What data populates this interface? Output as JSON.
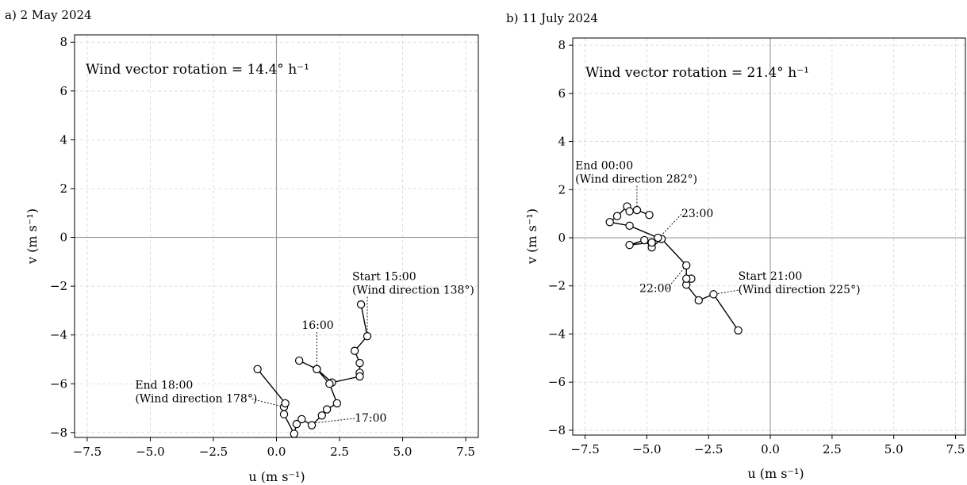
{
  "chart_data": [
    {
      "type": "line",
      "title": "a) 2 May 2024",
      "xlabel": "u (m s⁻¹)",
      "ylabel": "v (m s⁻¹)",
      "xlim": [
        -8.0,
        8.0
      ],
      "ylim": [
        -8.2,
        8.3
      ],
      "xticks": [
        -7.5,
        -5.0,
        -2.5,
        0.0,
        2.5,
        5.0,
        7.5
      ],
      "xtick_labels": [
        "−7.5",
        "−5.0",
        "−2.5",
        "0.0",
        "2.5",
        "5.0",
        "7.5"
      ],
      "yticks": [
        -8,
        -6,
        -4,
        -2,
        0,
        2,
        4,
        6,
        8
      ],
      "ytick_labels": [
        "−8",
        "−6",
        "−4",
        "−2",
        "0",
        "2",
        "4",
        "6",
        "8"
      ],
      "grid": true,
      "rotation_text": "Wind vector rotation = 14.4° h⁻¹",
      "series": [
        {
          "points": [
            [
              3.35,
              -2.75
            ],
            [
              3.6,
              -4.05
            ],
            [
              3.1,
              -4.65
            ],
            [
              3.3,
              -5.15
            ],
            [
              3.3,
              -5.55
            ],
            [
              3.3,
              -5.7
            ],
            [
              2.2,
              -5.95
            ],
            [
              1.6,
              -5.4
            ],
            [
              0.9,
              -5.05
            ],
            [
              1.6,
              -5.4
            ],
            [
              2.1,
              -6.0
            ],
            [
              2.4,
              -6.8
            ],
            [
              2.0,
              -7.05
            ],
            [
              1.8,
              -7.3
            ],
            [
              1.4,
              -7.7
            ],
            [
              1.0,
              -7.45
            ],
            [
              0.8,
              -7.65
            ],
            [
              0.7,
              -8.05
            ],
            [
              0.3,
              -7.25
            ],
            [
              0.3,
              -6.95
            ],
            [
              0.35,
              -6.8
            ],
            [
              -0.75,
              -5.4
            ]
          ]
        }
      ],
      "annotations": [
        {
          "lines": [
            "Start 15:00",
            "(Wind direction 138°)"
          ],
          "anchor": [
            3.6,
            -4.05
          ],
          "text_at": [
            3.0,
            -1.75
          ]
        },
        {
          "lines": [
            "16:00"
          ],
          "anchor": [
            1.6,
            -5.4
          ],
          "text_at": [
            1.0,
            -3.75
          ]
        },
        {
          "lines": [
            "17:00"
          ],
          "anchor": [
            1.55,
            -7.6
          ],
          "text_at": [
            3.1,
            -7.55
          ]
        },
        {
          "lines": [
            "End 18:00",
            "(Wind direction 178°)"
          ],
          "anchor": [
            0.3,
            -6.95
          ],
          "text_at": [
            -5.6,
            -6.2
          ]
        }
      ]
    },
    {
      "type": "line",
      "title": "b) 11 July 2024",
      "xlabel": "u (m s⁻¹)",
      "ylabel": "v (m s⁻¹)",
      "xlim": [
        -8.0,
        7.9
      ],
      "ylim": [
        -8.2,
        8.3
      ],
      "xticks": [
        -7.5,
        -5.0,
        -2.5,
        0.0,
        2.5,
        5.0,
        7.5
      ],
      "xtick_labels": [
        "−7.5",
        "−5.0",
        "−2.5",
        "0.0",
        "2.5",
        "5.0",
        "7.5"
      ],
      "yticks": [
        -8,
        -6,
        -4,
        -2,
        0,
        2,
        4,
        6,
        8
      ],
      "ytick_labels": [
        "−8",
        "−6",
        "−4",
        "−2",
        "0",
        "2",
        "4",
        "6",
        "8"
      ],
      "grid": true,
      "rotation_text": "Wind vector rotation = 21.4° h⁻¹",
      "series": [
        {
          "points": [
            [
              -1.3,
              -3.85
            ],
            [
              -2.3,
              -2.35
            ],
            [
              -2.9,
              -2.6
            ],
            [
              -3.4,
              -1.95
            ],
            [
              -3.2,
              -1.7
            ],
            [
              -3.4,
              -1.7
            ],
            [
              -3.4,
              -1.15
            ],
            [
              -4.4,
              -0.05
            ],
            [
              -4.8,
              -0.4
            ],
            [
              -5.1,
              -0.1
            ],
            [
              -5.7,
              -0.3
            ],
            [
              -4.8,
              -0.2
            ],
            [
              -4.55,
              0.0
            ],
            [
              -5.7,
              0.5
            ],
            [
              -6.5,
              0.65
            ],
            [
              -6.2,
              0.9
            ],
            [
              -5.8,
              1.3
            ],
            [
              -5.7,
              1.1
            ],
            [
              -5.4,
              1.15
            ],
            [
              -4.9,
              0.95
            ]
          ]
        }
      ],
      "annotations": [
        {
          "lines": [
            "Start 21:00",
            "(Wind direction 225°)"
          ],
          "anchor": [
            -2.3,
            -2.35
          ],
          "text_at": [
            -1.3,
            -1.75
          ]
        },
        {
          "lines": [
            "22:00"
          ],
          "anchor": [
            -3.4,
            -1.15
          ],
          "text_at": [
            -5.3,
            -2.25
          ]
        },
        {
          "lines": [
            "23:00"
          ],
          "anchor": [
            -4.5,
            0.0
          ],
          "text_at": [
            -3.6,
            0.85
          ]
        },
        {
          "lines": [
            "End 00:00",
            "(Wind direction 282°)"
          ],
          "anchor": [
            -5.4,
            1.2
          ],
          "text_at": [
            -7.9,
            2.85
          ]
        }
      ]
    }
  ]
}
